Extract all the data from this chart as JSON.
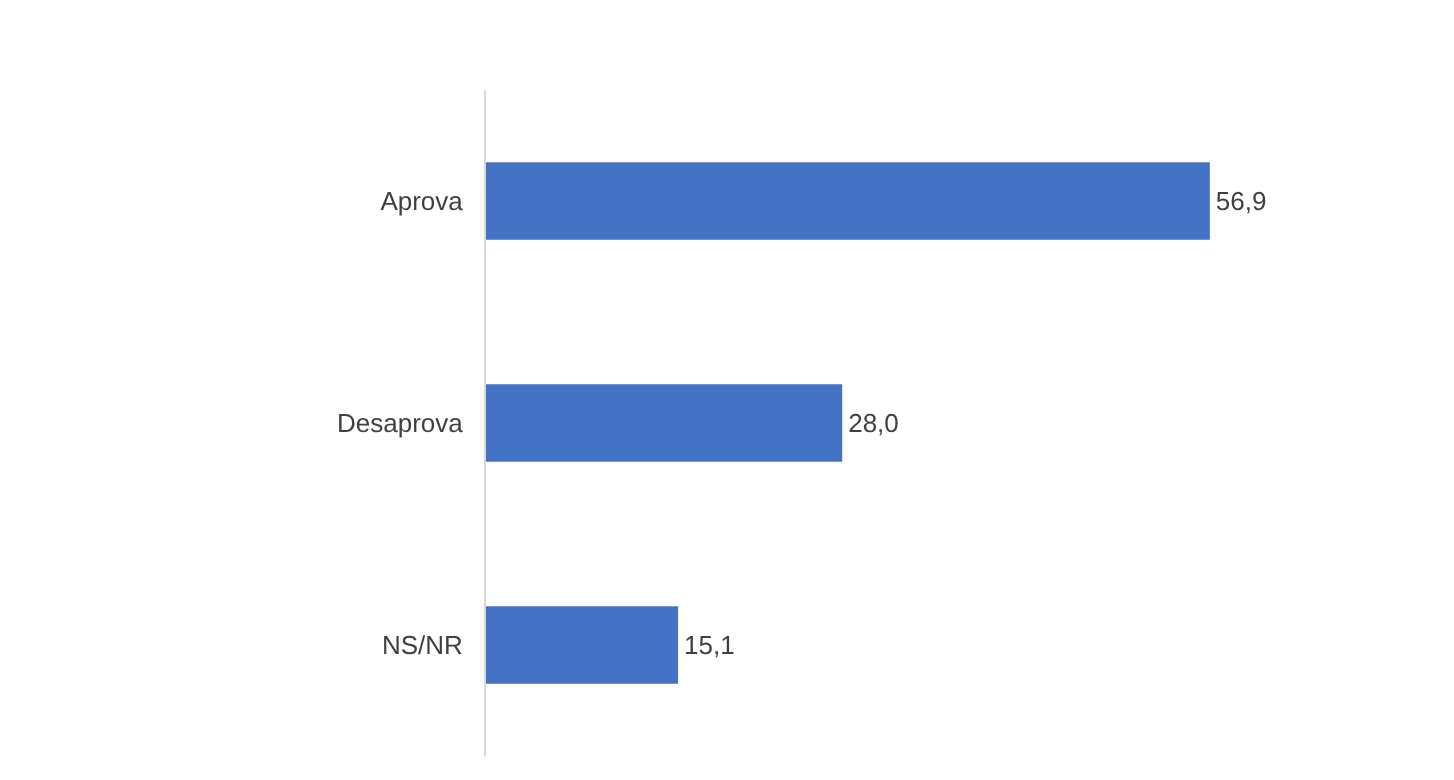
{
  "chart_data": {
    "type": "bar",
    "orientation": "horizontal",
    "categories": [
      "Aprova",
      "Desaprova",
      "NS/NR"
    ],
    "values": [
      56.9,
      28.0,
      15.1
    ],
    "value_labels": [
      "56,9",
      "28,0",
      "15,1"
    ],
    "color": "#4472c4"
  }
}
